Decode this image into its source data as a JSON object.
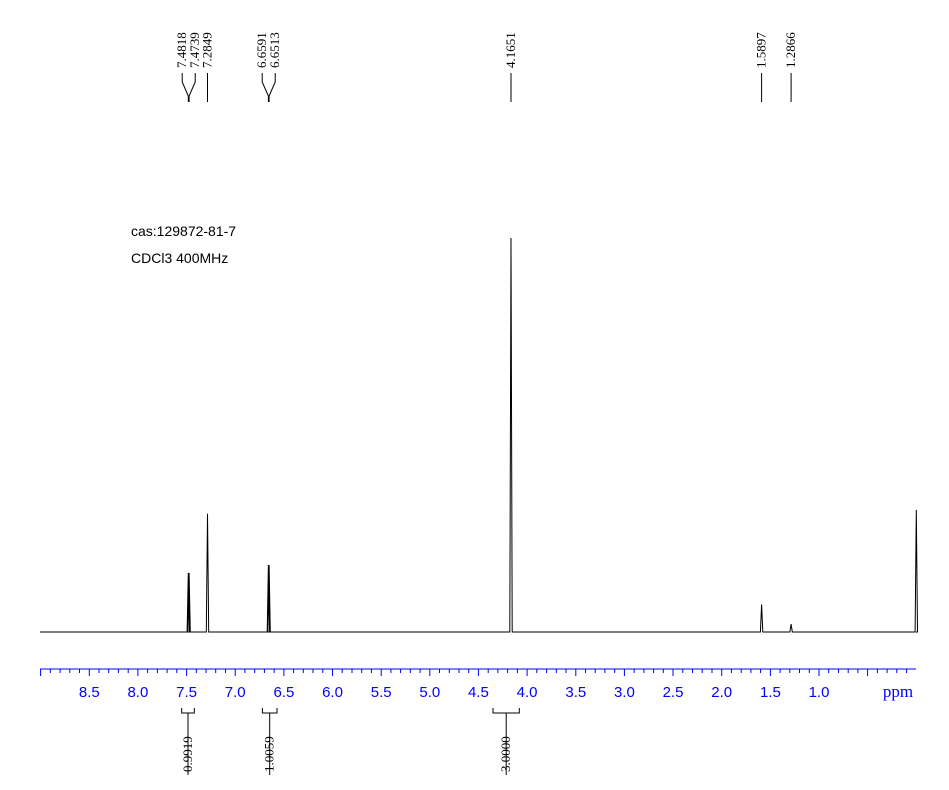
{
  "sample_info": {
    "cas": "cas:129872-81-7",
    "conditions": "CDCl3 400MHz"
  },
  "chart_data": {
    "type": "line",
    "x_unit_label": "ppm",
    "x_reversed": true,
    "xlim": [
      9.05,
      0.0
    ],
    "x_ticks": [
      "8.5",
      "8.0",
      "7.5",
      "7.0",
      "6.5",
      "6.0",
      "5.5",
      "5.0",
      "4.5",
      "4.0",
      "3.5",
      "3.0",
      "2.5",
      "2.0",
      "1.5",
      "1.0"
    ],
    "peaks": [
      {
        "ppm": 7.4818,
        "height": 0.15
      },
      {
        "ppm": 7.4739,
        "height": 0.15
      },
      {
        "ppm": 7.2849,
        "height": 0.3
      },
      {
        "ppm": 6.6591,
        "height": 0.17
      },
      {
        "ppm": 6.6513,
        "height": 0.17
      },
      {
        "ppm": 4.1651,
        "height": 1.0
      },
      {
        "ppm": 1.5897,
        "height": 0.07
      },
      {
        "ppm": 1.2866,
        "height": 0.02
      },
      {
        "ppm": 0.0,
        "height": 0.31
      }
    ],
    "peak_labels": [
      {
        "text": "7.4818",
        "ppm": 7.4818,
        "group": 0
      },
      {
        "text": "7.4739",
        "ppm": 7.4739,
        "group": 0
      },
      {
        "text": "7.2849",
        "ppm": 7.2849,
        "group": 1
      },
      {
        "text": "6.6591",
        "ppm": 6.6591,
        "group": 2
      },
      {
        "text": "6.6513",
        "ppm": 6.6513,
        "group": 2
      },
      {
        "text": "4.1651",
        "ppm": 4.1651,
        "group": 3
      },
      {
        "text": "1.5897",
        "ppm": 1.5897,
        "group": 4
      },
      {
        "text": "1.2866",
        "ppm": 1.2866,
        "group": 5
      }
    ],
    "integrals": [
      {
        "value": "0.9919",
        "from_ppm": 7.55,
        "to_ppm": 7.42
      },
      {
        "value": "1.0059",
        "from_ppm": 6.72,
        "to_ppm": 6.57
      },
      {
        "value": "3.0000",
        "from_ppm": 4.35,
        "to_ppm": 4.08
      }
    ],
    "colors": {
      "spectrum": "#000000",
      "axis": "#0000ff"
    }
  }
}
